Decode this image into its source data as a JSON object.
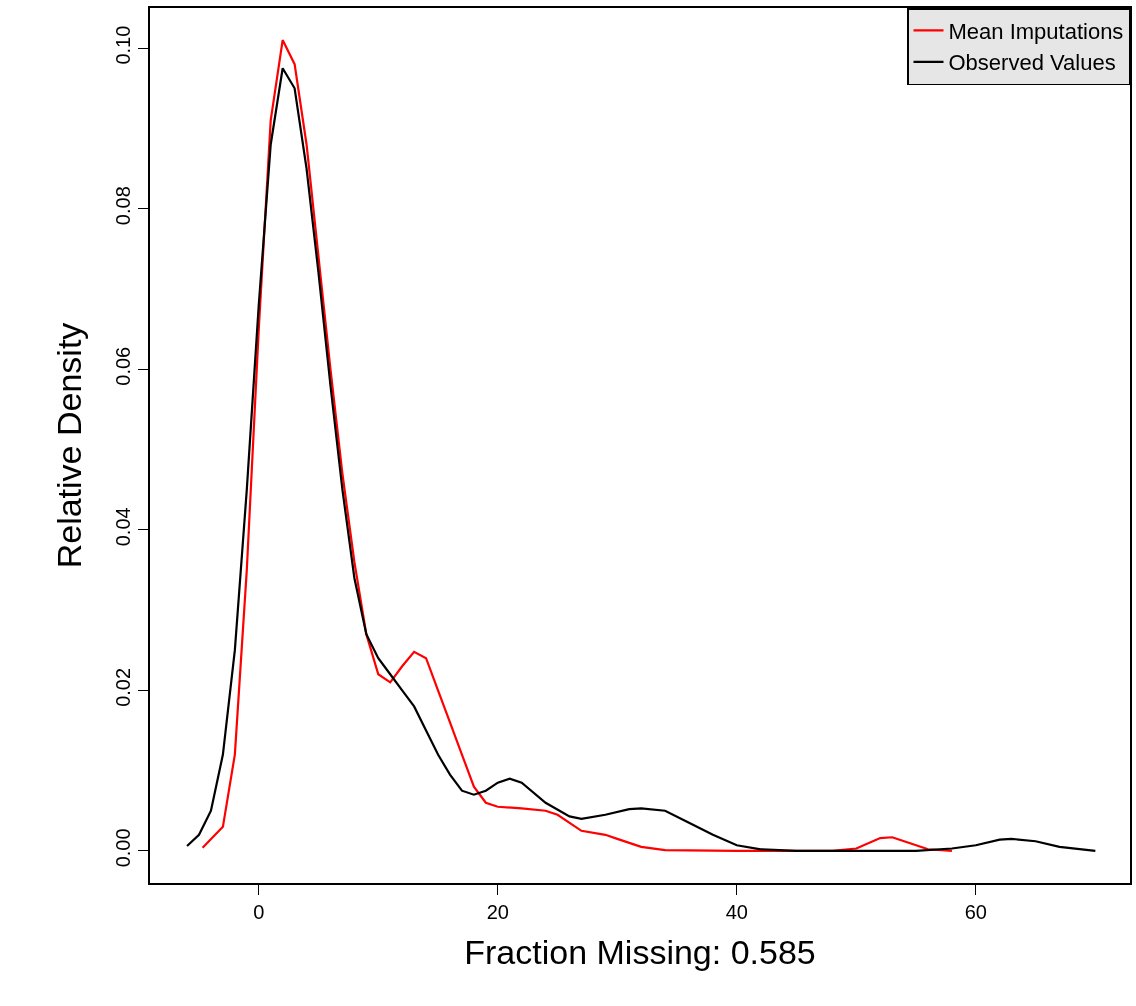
{
  "chart_data": {
    "type": "line",
    "xlabel": "Fraction Missing: 0.585",
    "ylabel": "Relative Density",
    "xlim": [
      -9.1,
      72.9
    ],
    "ylim": [
      -0.004,
      0.105
    ],
    "xticks": [
      0,
      20,
      40,
      60
    ],
    "yticks": [
      {
        "value": 0,
        "label": "0.00"
      },
      {
        "value": 0.02,
        "label": "0.02"
      },
      {
        "value": 0.04,
        "label": "0.04"
      },
      {
        "value": 0.06,
        "label": "0.06"
      },
      {
        "value": 0.08,
        "label": "0.08"
      },
      {
        "value": 0.1,
        "label": "0.10"
      }
    ],
    "grid": false,
    "legend": "top right",
    "line_style": "solid",
    "series": [
      {
        "name": "Mean Imputations",
        "color": "#ff0000",
        "x": [
          -4.7,
          -3,
          -2,
          -1,
          0,
          1,
          2,
          3,
          4,
          5,
          6,
          7,
          8,
          9,
          10,
          11,
          12,
          13,
          14,
          15,
          16,
          17,
          18,
          19,
          20,
          22,
          24,
          25,
          27,
          29,
          30,
          32,
          34,
          40,
          48,
          50,
          52,
          53,
          54,
          56,
          58
        ],
        "values": [
          0.0004,
          0.003,
          0.012,
          0.035,
          0.065,
          0.091,
          0.101,
          0.098,
          0.088,
          0.074,
          0.06,
          0.047,
          0.036,
          0.027,
          0.022,
          0.021,
          0.023,
          0.0248,
          0.024,
          0.02,
          0.016,
          0.012,
          0.008,
          0.006,
          0.0055,
          0.0053,
          0.005,
          0.0045,
          0.0025,
          0.002,
          0.0015,
          0.0005,
          0.0001,
          0,
          0,
          0.0003,
          0.0016,
          0.0017,
          0.0012,
          0.0002,
          0
        ]
      },
      {
        "name": "Observed Values",
        "color": "#000000",
        "x": [
          -6,
          -5,
          -4,
          -3,
          -2,
          -1,
          0,
          1,
          2,
          3,
          4,
          5,
          6,
          7,
          8,
          9,
          10,
          11,
          12,
          13,
          14,
          15,
          16,
          17,
          18,
          19,
          20,
          21,
          22,
          24,
          26,
          27,
          29,
          31,
          32,
          34,
          36,
          38,
          40,
          42,
          45,
          55,
          58,
          60,
          62,
          63,
          65,
          67,
          70
        ],
        "values": [
          0.0006,
          0.002,
          0.005,
          0.012,
          0.025,
          0.045,
          0.068,
          0.088,
          0.0975,
          0.095,
          0.085,
          0.072,
          0.058,
          0.045,
          0.034,
          0.027,
          0.024,
          0.022,
          0.02,
          0.018,
          0.015,
          0.012,
          0.0095,
          0.0075,
          0.007,
          0.0075,
          0.0085,
          0.009,
          0.0085,
          0.006,
          0.0043,
          0.004,
          0.0045,
          0.0052,
          0.0053,
          0.005,
          0.0035,
          0.002,
          0.0007,
          0.0002,
          0,
          0,
          0.0003,
          0.0007,
          0.0014,
          0.0015,
          0.0012,
          0.0005,
          0
        ]
      }
    ]
  }
}
